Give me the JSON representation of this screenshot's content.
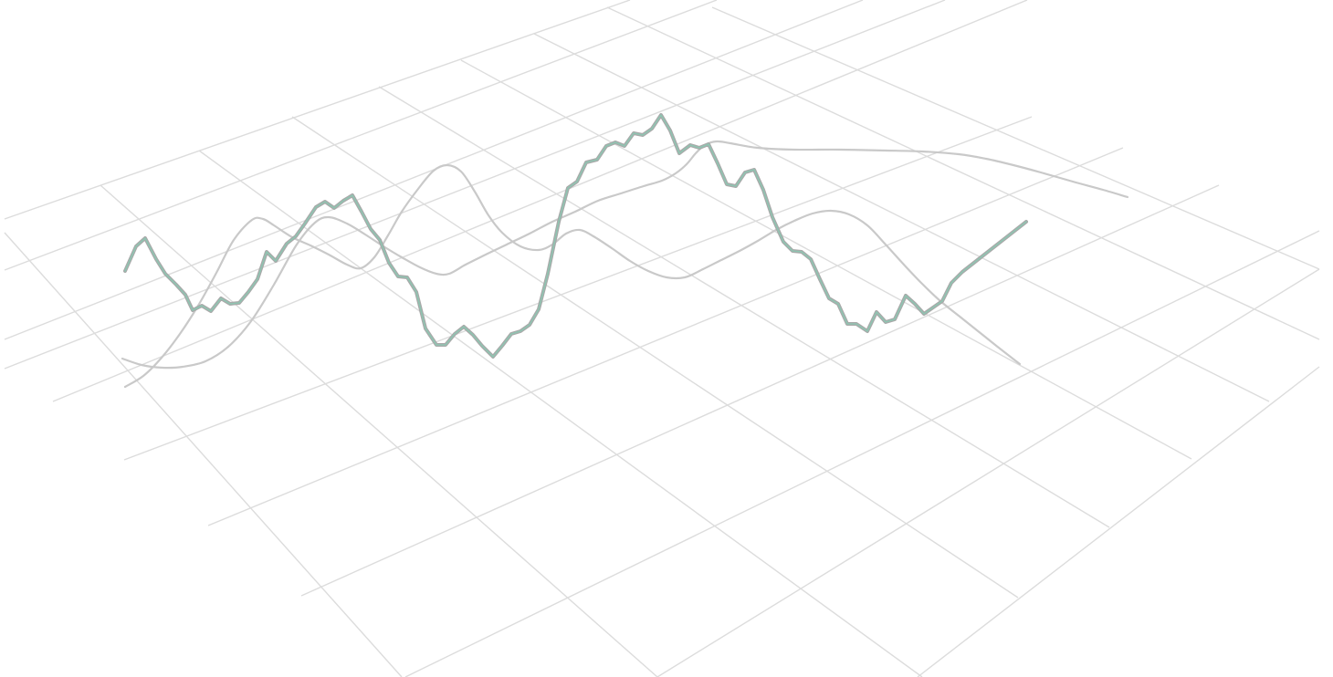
{
  "chart_data": {
    "type": "line",
    "title": "",
    "xlabel": "",
    "ylabel": "",
    "projection": "3d-perspective",
    "grid": true,
    "legend": "none",
    "colors": {
      "grid": "#dcdcdc",
      "smooth_series": "#c9c9c9",
      "jagged_shadow": "#a9a9a9",
      "jagged_line": "#8fc4b1"
    },
    "series": [
      {
        "style": "jagged",
        "points": [
          [
            137,
            297
          ],
          [
            149,
            270
          ],
          [
            159,
            261
          ],
          [
            171,
            284
          ],
          [
            181,
            300
          ],
          [
            193,
            312
          ],
          [
            203,
            323
          ],
          [
            211,
            340
          ],
          [
            221,
            335
          ],
          [
            231,
            341
          ],
          [
            242,
            327
          ],
          [
            252,
            333
          ],
          [
            262,
            332
          ],
          [
            272,
            320
          ],
          [
            282,
            306
          ],
          [
            292,
            276
          ],
          [
            302,
            286
          ],
          [
            314,
            267
          ],
          [
            324,
            259
          ],
          [
            334,
            245
          ],
          [
            346,
            227
          ],
          [
            356,
            221
          ],
          [
            366,
            228
          ],
          [
            376,
            220
          ],
          [
            386,
            214
          ],
          [
            396,
            232
          ],
          [
            406,
            251
          ],
          [
            416,
            263
          ],
          [
            426,
            288
          ],
          [
            436,
            303
          ],
          [
            446,
            304
          ],
          [
            456,
            320
          ],
          [
            466,
            360
          ],
          [
            478,
            378
          ],
          [
            488,
            378
          ],
          [
            498,
            366
          ],
          [
            508,
            358
          ],
          [
            518,
            367
          ],
          [
            528,
            379
          ],
          [
            540,
            391
          ],
          [
            550,
            379
          ],
          [
            560,
            366
          ],
          [
            570,
            363
          ],
          [
            580,
            356
          ],
          [
            590,
            339
          ],
          [
            600,
            300
          ],
          [
            612,
            243
          ],
          [
            622,
            206
          ],
          [
            632,
            199
          ],
          [
            642,
            178
          ],
          [
            654,
            175
          ],
          [
            664,
            160
          ],
          [
            674,
            156
          ],
          [
            684,
            160
          ],
          [
            694,
            146
          ],
          [
            704,
            148
          ],
          [
            714,
            141
          ],
          [
            724,
            126
          ],
          [
            734,
            143
          ],
          [
            744,
            168
          ],
          [
            756,
            159
          ],
          [
            766,
            162
          ],
          [
            776,
            158
          ],
          [
            786,
            179
          ],
          [
            796,
            202
          ],
          [
            806,
            204
          ],
          [
            816,
            189
          ],
          [
            826,
            186
          ],
          [
            836,
            208
          ],
          [
            846,
            238
          ],
          [
            858,
            265
          ],
          [
            868,
            275
          ],
          [
            878,
            276
          ],
          [
            888,
            284
          ],
          [
            898,
            306
          ],
          [
            908,
            327
          ],
          [
            918,
            333
          ],
          [
            928,
            355
          ],
          [
            938,
            355
          ],
          [
            950,
            363
          ],
          [
            960,
            342
          ],
          [
            970,
            353
          ],
          [
            980,
            350
          ],
          [
            992,
            324
          ],
          [
            1002,
            333
          ],
          [
            1012,
            344
          ],
          [
            1022,
            337
          ],
          [
            1032,
            330
          ],
          [
            1042,
            310
          ],
          [
            1054,
            298
          ],
          [
            1124,
            243
          ]
        ]
      },
      {
        "style": "smooth",
        "points": [
          [
            137,
            424
          ],
          [
            157,
            412
          ],
          [
            177,
            392
          ],
          [
            197,
            366
          ],
          [
            217,
            335
          ],
          [
            237,
            299
          ],
          [
            256,
            263
          ],
          [
            276,
            241
          ],
          [
            288,
            240
          ],
          [
            300,
            247
          ],
          [
            320,
            260
          ],
          [
            340,
            269
          ],
          [
            360,
            279
          ],
          [
            380,
            290
          ],
          [
            395,
            294
          ],
          [
            410,
            282
          ],
          [
            425,
            258
          ],
          [
            440,
            232
          ],
          [
            458,
            207
          ],
          [
            475,
            187
          ],
          [
            490,
            181
          ],
          [
            505,
            188
          ],
          [
            520,
            210
          ],
          [
            535,
            236
          ],
          [
            550,
            255
          ],
          [
            570,
            270
          ],
          [
            590,
            274
          ],
          [
            605,
            268
          ],
          [
            620,
            256
          ],
          [
            635,
            252
          ],
          [
            650,
            259
          ],
          [
            670,
            272
          ],
          [
            690,
            286
          ],
          [
            710,
            297
          ],
          [
            730,
            304
          ],
          [
            750,
            304
          ],
          [
            770,
            295
          ],
          [
            790,
            285
          ],
          [
            810,
            275
          ],
          [
            830,
            264
          ],
          [
            850,
            252
          ],
          [
            870,
            242
          ],
          [
            890,
            234
          ],
          [
            910,
            231
          ],
          [
            930,
            235
          ],
          [
            950,
            247
          ],
          [
            970,
            268
          ],
          [
            990,
            290
          ],
          [
            1010,
            311
          ],
          [
            1030,
            330
          ],
          [
            1050,
            346
          ],
          [
            1070,
            362
          ],
          [
            1090,
            378
          ],
          [
            1117,
            399
          ]
        ]
      },
      {
        "style": "smooth",
        "points": [
          [
            134,
            393
          ],
          [
            155,
            400
          ],
          [
            178,
            403
          ],
          [
            200,
            402
          ],
          [
            225,
            396
          ],
          [
            250,
            380
          ],
          [
            275,
            352
          ],
          [
            300,
            312
          ],
          [
            325,
            268
          ],
          [
            345,
            244
          ],
          [
            360,
            238
          ],
          [
            380,
            245
          ],
          [
            400,
            257
          ],
          [
            420,
            270
          ],
          [
            440,
            282
          ],
          [
            460,
            293
          ],
          [
            478,
            300
          ],
          [
            492,
            300
          ],
          [
            510,
            290
          ],
          [
            530,
            280
          ],
          [
            555,
            268
          ],
          [
            580,
            256
          ],
          [
            605,
            243
          ],
          [
            630,
            232
          ],
          [
            655,
            220
          ],
          [
            680,
            212
          ],
          [
            705,
            204
          ],
          [
            725,
            198
          ],
          [
            740,
            190
          ],
          [
            752,
            180
          ],
          [
            762,
            168
          ],
          [
            772,
            159
          ],
          [
            785,
            155
          ],
          [
            800,
            157
          ],
          [
            830,
            162
          ],
          [
            870,
            164
          ],
          [
            920,
            164
          ],
          [
            970,
            165
          ],
          [
            1010,
            166
          ],
          [
            1050,
            169
          ],
          [
            1080,
            174
          ],
          [
            1110,
            181
          ],
          [
            1140,
            189
          ],
          [
            1175,
            199
          ],
          [
            1208,
            208
          ],
          [
            1235,
            216
          ]
        ]
      }
    ]
  }
}
